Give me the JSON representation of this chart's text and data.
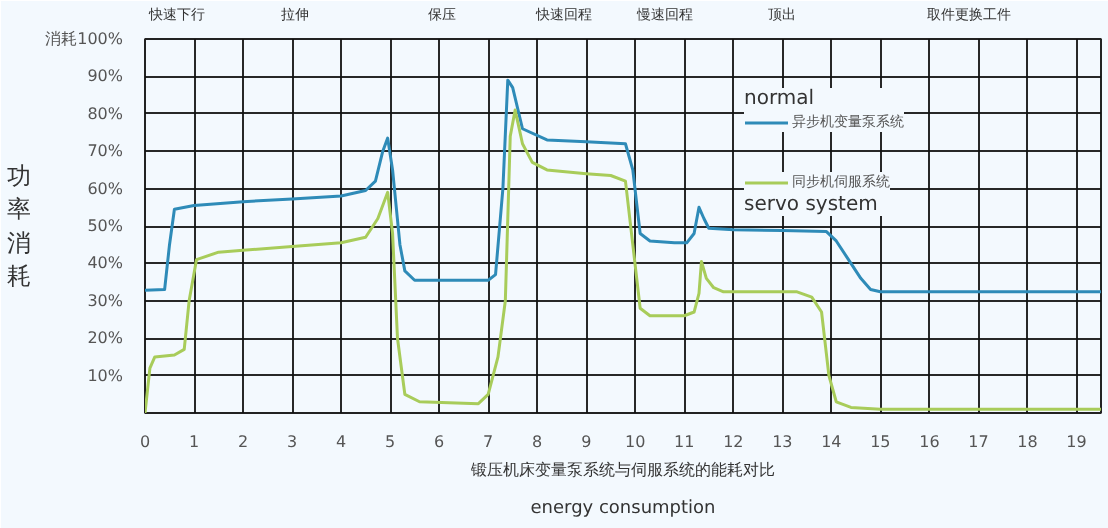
{
  "chart_data": {
    "type": "line",
    "xlabel": "锻压机床变量泵系统与伺服系统的能耗对比",
    "ylabel": "功率消耗",
    "annotations": [
      "energy consumption",
      "normal",
      "servo system",
      "快速下行",
      "拉伸",
      "保压",
      "快速回程",
      "慢速回程",
      "顶出",
      "取件更换工件"
    ],
    "xlim": [
      0,
      19.5
    ],
    "ylim": [
      0,
      100
    ],
    "xticks": [
      0,
      1,
      2,
      3,
      4,
      5,
      6,
      7,
      8,
      9,
      10,
      11,
      12,
      13,
      14,
      15,
      16,
      17,
      18,
      19
    ],
    "yticks": [
      {
        "value": 10,
        "label": "10%"
      },
      {
        "value": 20,
        "label": "20%"
      },
      {
        "value": 30,
        "label": "30%"
      },
      {
        "value": 40,
        "label": "40%"
      },
      {
        "value": 50,
        "label": "50%"
      },
      {
        "value": 60,
        "label": "60%"
      },
      {
        "value": 70,
        "label": "70%"
      },
      {
        "value": 80,
        "label": "80%"
      },
      {
        "value": 90,
        "label": "90%"
      },
      {
        "value": 100,
        "label": "消耗100%"
      }
    ],
    "grid": true,
    "legend": "right",
    "series": [
      {
        "name": "异步机变量泵系统",
        "color": "#2e8bb8",
        "x": [
          0,
          0.4,
          0.5,
          0.6,
          1,
          2,
          3,
          4,
          4.5,
          4.7,
          4.85,
          4.95,
          5.05,
          5.2,
          5.3,
          5.5,
          7.0,
          7.15,
          7.3,
          7.4,
          7.5,
          7.7,
          8.2,
          9,
          9.8,
          9.95,
          10.1,
          10.3,
          10.8,
          11.05,
          11.2,
          11.3,
          11.4,
          11.5,
          12,
          13,
          13.9,
          14.1,
          14.4,
          14.6,
          14.8,
          15,
          16,
          17,
          18,
          19,
          19.5
        ],
        "values": [
          32.8,
          33,
          45,
          54.5,
          55.5,
          56.5,
          57.2,
          58,
          59.5,
          62,
          70,
          73.5,
          65,
          45,
          38,
          35.5,
          35.5,
          37,
          60,
          89,
          87,
          76,
          73,
          72.5,
          72,
          65,
          48,
          46,
          45.5,
          45.5,
          48,
          55,
          52,
          49.4,
          49,
          48.8,
          48.5,
          46,
          40,
          36,
          33,
          32.4,
          32.4,
          32.4,
          32.4,
          32.4,
          32.4
        ]
      },
      {
        "name": "同步机伺服系统",
        "color": "#a8cc5a",
        "x": [
          0,
          0.1,
          0.2,
          0.6,
          0.8,
          0.9,
          1.05,
          1.5,
          2,
          3,
          4,
          4.5,
          4.75,
          4.95,
          5.05,
          5.15,
          5.3,
          5.6,
          6.8,
          7.0,
          7.2,
          7.35,
          7.45,
          7.55,
          7.7,
          7.9,
          8.2,
          9,
          9.5,
          9.8,
          9.95,
          10.1,
          10.3,
          11.0,
          11.2,
          11.3,
          11.35,
          11.45,
          11.6,
          11.8,
          12.5,
          13.3,
          13.6,
          13.8,
          13.95,
          14.1,
          14.4,
          15,
          16,
          17,
          18,
          19,
          19.5
        ],
        "values": [
          0,
          12,
          15,
          15.5,
          17,
          30,
          41,
          43,
          43.5,
          44.5,
          45.5,
          47,
          52,
          59,
          48,
          20,
          5,
          3,
          2.5,
          5,
          15,
          30,
          74,
          81,
          72,
          67,
          65,
          64,
          63.5,
          62,
          45,
          28,
          26,
          26,
          27,
          32,
          40.5,
          36,
          33.5,
          32.4,
          32.4,
          32.4,
          31,
          27,
          10,
          3,
          1.5,
          1,
          1,
          1,
          1,
          1,
          1
        ]
      }
    ]
  }
}
